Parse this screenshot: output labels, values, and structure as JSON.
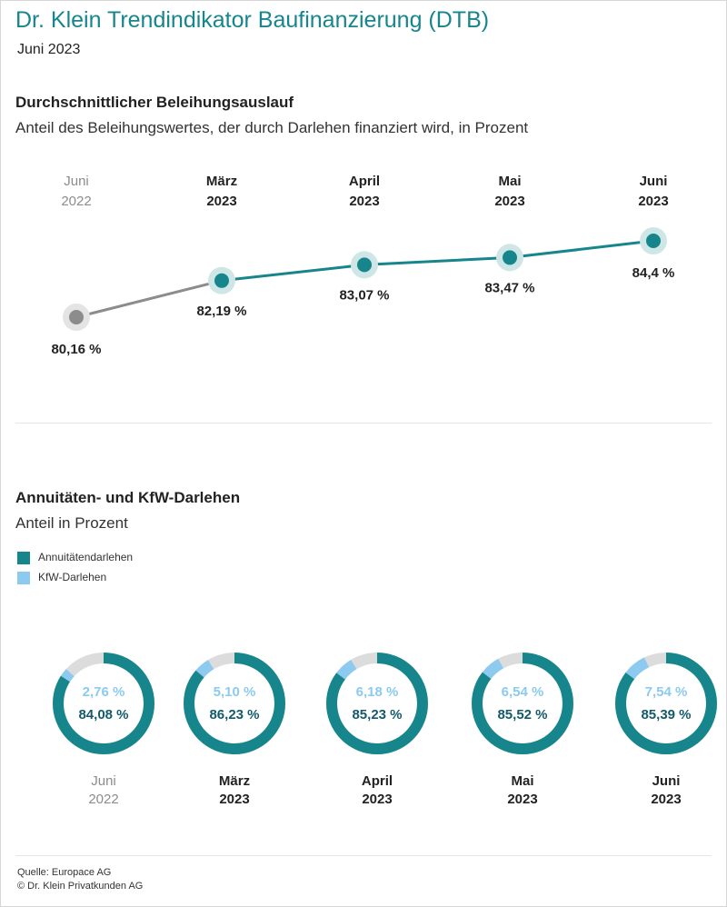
{
  "header": {
    "title": "Dr. Klein Trendindikator Baufinanzierung (DTB)",
    "subtitle": "Juni 2023"
  },
  "section1": {
    "title": "Durchschnittlicher Beleihungsauslauf",
    "subtitle": "Anteil des Beleihungswertes, der durch Darlehen finanziert wird, in Prozent"
  },
  "section2": {
    "title": "Annuitäten- und KfW-Darlehen",
    "subtitle": "Anteil in Prozent",
    "legend": [
      {
        "label": "Annuitätendarlehen",
        "color": "#17868c"
      },
      {
        "label": "KfW-Darlehen",
        "color": "#8ccaef"
      }
    ]
  },
  "footer": {
    "source": "Quelle: Europace AG",
    "copyright": "© Dr. Klein Privatkunden AG"
  },
  "colors": {
    "teal": "#17868c",
    "teal_halo": "#cfe6e7",
    "gray": "#8c8c8c",
    "gray_halo": "#e4e4e4",
    "light_blue": "#8ccaef",
    "ring_rest": "#dcdcdc",
    "period_gray": "#8c8c8c",
    "value_teal": "#145a6a"
  },
  "chart_data": [
    {
      "type": "line",
      "title": "Durchschnittlicher Beleihungsauslauf",
      "ylabel": "Prozent",
      "categories": [
        {
          "month": "Juni",
          "year": "2022",
          "past": true
        },
        {
          "month": "März",
          "year": "2023",
          "past": false
        },
        {
          "month": "April",
          "year": "2023",
          "past": false
        },
        {
          "month": "Mai",
          "year": "2023",
          "past": false
        },
        {
          "month": "Juni",
          "year": "2023",
          "past": false
        }
      ],
      "values": [
        80.16,
        82.19,
        83.07,
        83.47,
        84.4
      ],
      "labels": [
        "80,16 %",
        "82,19 %",
        "83,07 %",
        "83,47 %",
        "84,4 %"
      ]
    },
    {
      "type": "donut",
      "title": "Annuitäten- und KfW-Darlehen",
      "categories": [
        {
          "month": "Juni",
          "year": "2022",
          "past": true
        },
        {
          "month": "März",
          "year": "2023",
          "past": false
        },
        {
          "month": "April",
          "year": "2023",
          "past": false
        },
        {
          "month": "Mai",
          "year": "2023",
          "past": false
        },
        {
          "month": "Juni",
          "year": "2023",
          "past": false
        }
      ],
      "series": [
        {
          "name": "Annuitätendarlehen",
          "values": [
            84.08,
            86.23,
            85.23,
            85.52,
            85.39
          ],
          "labels": [
            "84,08 %",
            "86,23 %",
            "85,23 %",
            "85,52 %",
            "85,39 %"
          ]
        },
        {
          "name": "KfW-Darlehen",
          "values": [
            2.76,
            5.1,
            6.18,
            6.54,
            7.54
          ],
          "labels": [
            "2,76 %",
            "5,10 %",
            "6,18 %",
            "6,54 %",
            "7,54 %"
          ]
        }
      ]
    }
  ]
}
